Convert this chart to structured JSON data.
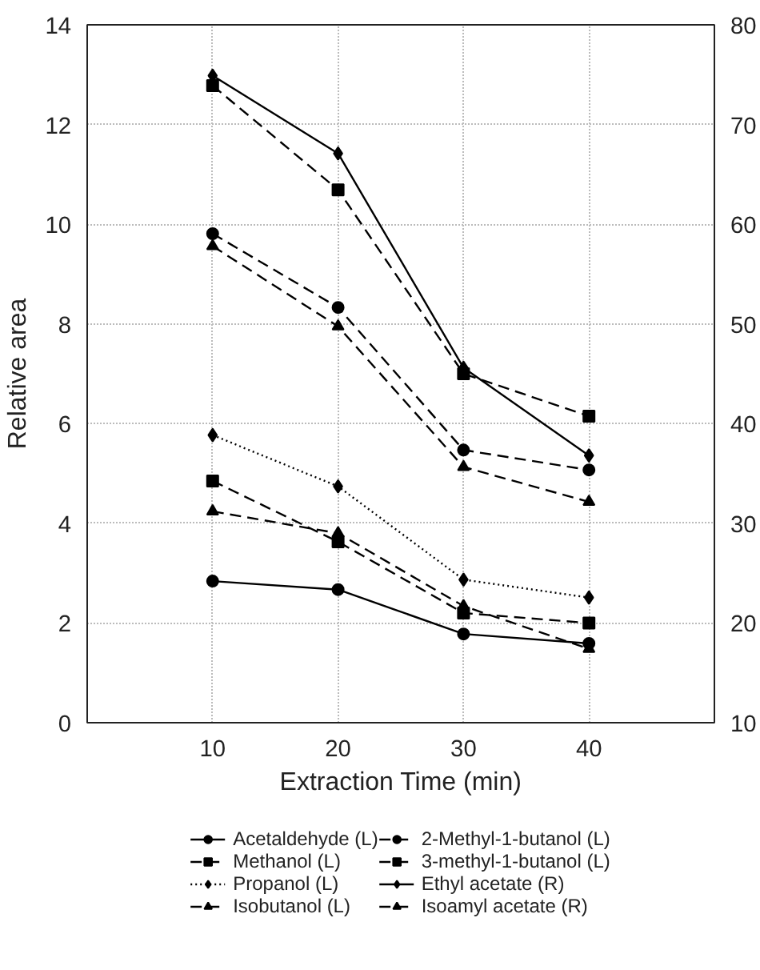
{
  "chart_data": {
    "type": "line",
    "xlabel": "Extraction Time (min)",
    "ylabel": "Relative area",
    "x": [
      10,
      20,
      30,
      40
    ],
    "xlim": [
      0,
      50
    ],
    "xticks": [
      10,
      20,
      30,
      40
    ],
    "ylim": [
      0,
      14
    ],
    "yticks": [
      0,
      2,
      4,
      6,
      8,
      10,
      12,
      14
    ],
    "y2lim": [
      10,
      80
    ],
    "y2ticks": [
      10,
      20,
      30,
      40,
      50,
      60,
      70,
      80
    ],
    "grid": true,
    "legend": "bottom",
    "series": [
      {
        "name": "Acetaldehyde (L)",
        "color": "#000000",
        "marker": "circle",
        "line_style": "solid",
        "values": [
          2.84,
          2.67,
          1.78,
          1.59
        ]
      },
      {
        "name": "Methanol (L)",
        "color": "#000000",
        "marker": "square",
        "line_style": "dashed",
        "values": [
          4.85,
          3.63,
          2.2,
          2.0
        ]
      },
      {
        "name": "Propanol (L)",
        "color": "#000000",
        "marker": "diamond",
        "line_style": "dotted",
        "values": [
          5.77,
          4.74,
          2.87,
          2.51
        ]
      },
      {
        "name": "Isobutanol (L)",
        "color": "#000000",
        "marker": "triangle",
        "line_style": "dashed",
        "values": [
          9.56,
          7.95,
          5.13,
          4.43
        ]
      },
      {
        "name": "2-Methyl-1-butanol (L)",
        "color": "#000000",
        "marker": "circle",
        "line_style": "dashed",
        "values": [
          9.81,
          8.33,
          5.47,
          5.07
        ]
      },
      {
        "name": "3-methyl-1-butanol (L)",
        "color": "#000000",
        "marker": "square",
        "line_style": "dashed",
        "values": [
          12.78,
          10.69,
          7.0,
          6.15
        ]
      },
      {
        "name": "Ethyl acetate (R)",
        "color": "#000000",
        "marker": "diamond",
        "line_style": "solid",
        "axis": "y2",
        "values": [
          74.9,
          67.1,
          45.6,
          36.8
        ]
      },
      {
        "name": "Isoamyl acetate (R)",
        "color": "#000000",
        "marker": "triangle",
        "line_style": "dashed",
        "axis": "y2",
        "values": [
          31.2,
          29.0,
          21.7,
          17.4
        ]
      }
    ]
  }
}
